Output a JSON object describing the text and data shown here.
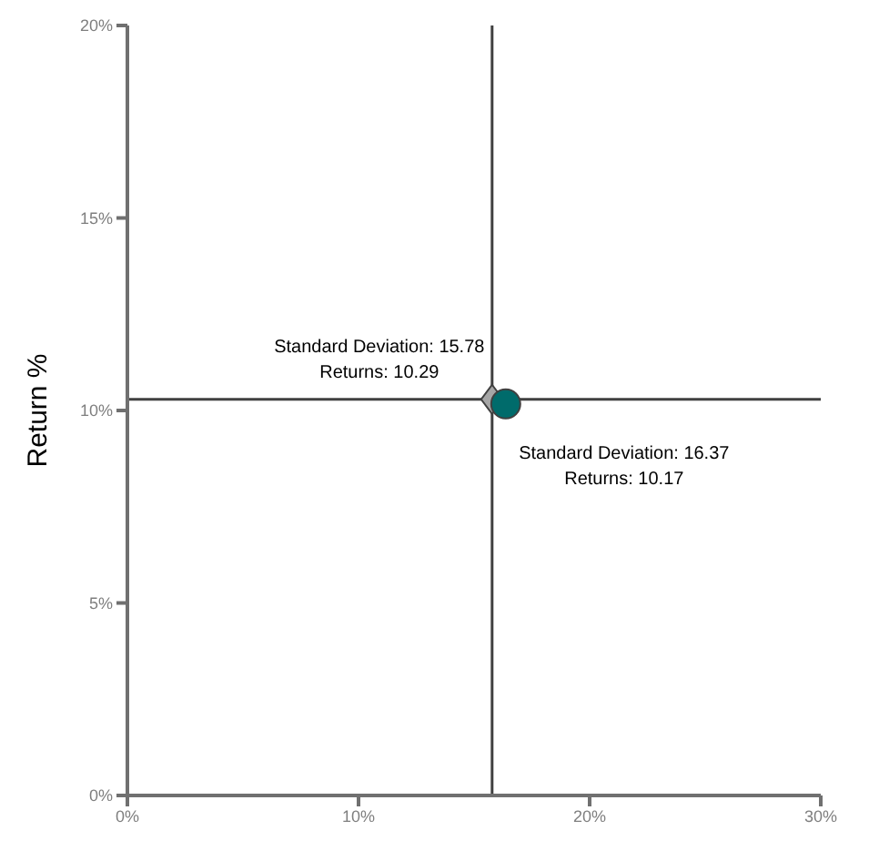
{
  "chart_data": {
    "type": "scatter",
    "ylabel": "Return %",
    "xlim": [
      0,
      30
    ],
    "ylim": [
      0,
      20
    ],
    "xticks": [
      {
        "value": 0,
        "label": "0%"
      },
      {
        "value": 10,
        "label": "10%"
      },
      {
        "value": 20,
        "label": "20%"
      },
      {
        "value": 30,
        "label": "30%"
      }
    ],
    "yticks": [
      {
        "value": 0,
        "label": "0%"
      },
      {
        "value": 5,
        "label": "5%"
      },
      {
        "value": 10,
        "label": "10%"
      },
      {
        "value": 15,
        "label": "15%"
      },
      {
        "value": 20,
        "label": "20%"
      }
    ],
    "series": [
      {
        "color": "#a6a6a6",
        "marker": "diamond",
        "x": [
          15.78
        ],
        "values": [
          10.29
        ]
      },
      {
        "color": "#006b6b",
        "marker": "circle",
        "x": [
          16.37
        ],
        "values": [
          10.17
        ]
      }
    ],
    "ref_lines": [
      {
        "axis": "x",
        "value": 15.78,
        "color": "#404040"
      },
      {
        "axis": "y",
        "value": 10.29,
        "color": "#404040"
      }
    ],
    "annotations": [
      {
        "text": "Standard Deviation: 15.78\nReturns: 10.29",
        "x": 15.78,
        "y": 10.29
      },
      {
        "text": "Standard Deviation: 16.37\nReturns: 10.17",
        "x": 16.37,
        "y": 10.17
      }
    ],
    "grid": false,
    "legend": false
  }
}
